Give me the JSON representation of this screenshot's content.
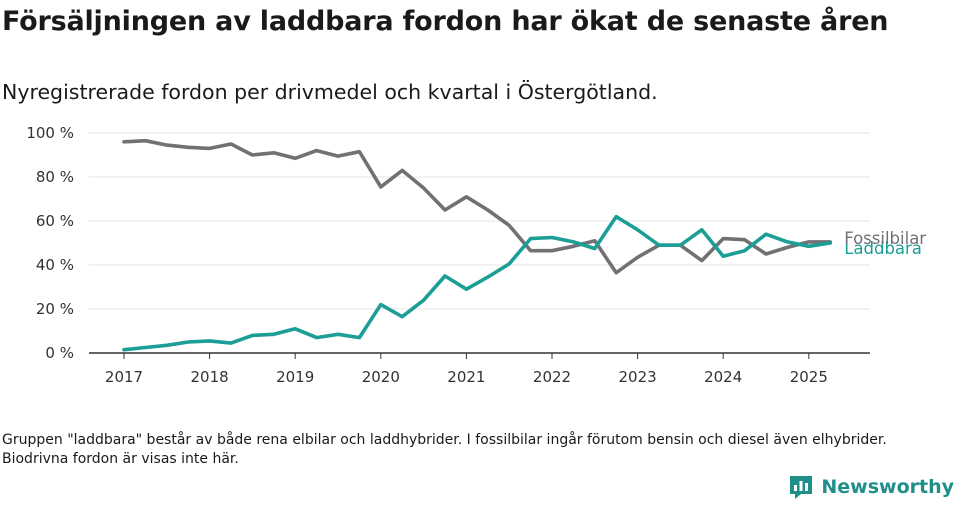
{
  "title": "Försäljningen av laddbara fordon har ökat de senaste åren",
  "subtitle": "Nyregistrerade fordon per drivmedel och kvartal i Östergötland.",
  "footnote": "Gruppen \"laddbara\" består av både rena elbilar och laddhybrider. I fossilbilar ingår förutom bensin och diesel även elhybrider. Biodrivna fordon är visas inte här.",
  "brand": {
    "name": "Newsworthy",
    "icon": "newsworthy-logo-icon",
    "color": "#1f8f8a"
  },
  "chart_data": {
    "type": "line",
    "x_unit": "quarter",
    "x_start": "2017 Q1",
    "xticks": [
      "2017",
      "2018",
      "2019",
      "2020",
      "2021",
      "2022",
      "2023",
      "2024",
      "2025"
    ],
    "yticks": [
      "0 %",
      "20 %",
      "40 %",
      "60 %",
      "80 %",
      "100 %"
    ],
    "ylim": [
      0,
      100
    ],
    "grid": true,
    "series": [
      {
        "name": "Fossilbilar",
        "color": "#737075",
        "values": [
          96,
          96.5,
          94.5,
          93.5,
          93,
          95,
          90,
          91,
          88.5,
          92,
          89.5,
          91.5,
          75.5,
          83,
          75,
          65,
          71,
          65,
          58,
          46.5,
          46.5,
          48.5,
          51,
          36.5,
          43.5,
          49,
          49,
          42,
          52,
          51.5,
          45,
          48,
          50.5,
          50.5
        ]
      },
      {
        "name": "Laddbara",
        "color": "#1a9e95",
        "values": [
          1.5,
          2.5,
          3.5,
          5,
          5.5,
          4.5,
          8,
          8.5,
          11,
          7,
          8.5,
          7,
          22,
          16.5,
          24,
          35,
          29,
          34.5,
          40.5,
          52,
          52.5,
          50.5,
          47.5,
          62,
          56,
          49,
          49,
          56,
          44,
          46.5,
          54,
          50.5,
          48.5,
          50
        ]
      }
    ]
  }
}
